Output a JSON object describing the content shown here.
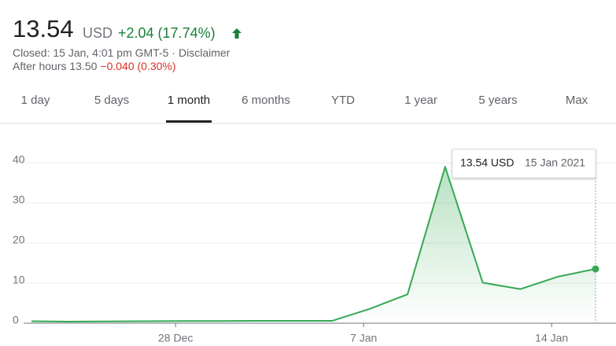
{
  "header": {
    "price": "13.54",
    "currency": "USD",
    "change": "+2.04 (17.74%)",
    "closed": "Closed: 15 Jan, 4:01 pm GMT-5 ·",
    "disclaimer": "Disclaimer",
    "after_hours": "After hours 13.50",
    "after_hours_change": "−0.040 (0.30%)"
  },
  "tabs": [
    "1 day",
    "5 days",
    "1 month",
    "6 months",
    "YTD",
    "1 year",
    "5 years",
    "Max"
  ],
  "active_tab": 2,
  "chart_data": {
    "type": "line",
    "categories": [
      null,
      null,
      null,
      null,
      "28 Dec",
      null,
      null,
      null,
      null,
      "7 Jan",
      null,
      null,
      null,
      null,
      "14 Jan",
      null
    ],
    "values": [
      0.5,
      0.4,
      0.45,
      0.5,
      0.55,
      0.55,
      0.6,
      0.6,
      0.6,
      3.6,
      7.2,
      39,
      10.1,
      8.5,
      11.6,
      13.54
    ],
    "color": "#34a853",
    "ylim": [
      0,
      44
    ],
    "yticks": [
      0,
      10,
      20,
      30,
      40
    ],
    "grid": true,
    "tooltip": {
      "value": "13.54 USD",
      "date": "15 Jan 2021"
    }
  }
}
